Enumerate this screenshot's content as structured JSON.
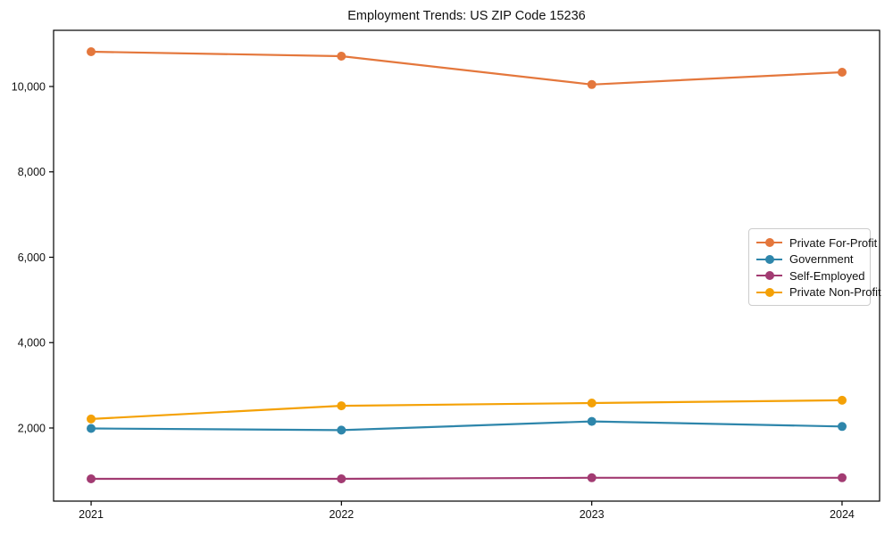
{
  "chart_data": {
    "type": "line",
    "title": "Employment Trends: US ZIP Code 15236",
    "xlabel": "",
    "ylabel": "",
    "categories": [
      "2021",
      "2022",
      "2023",
      "2024"
    ],
    "series": [
      {
        "name": "Private For-Profit",
        "color": "#E4773C",
        "values": [
          10815,
          10710,
          10045,
          10335
        ]
      },
      {
        "name": "Government",
        "color": "#2E86AB",
        "values": [
          1990,
          1950,
          2155,
          2035
        ]
      },
      {
        "name": "Self-Employed",
        "color": "#A23B72",
        "values": [
          810,
          810,
          835,
          835
        ]
      },
      {
        "name": "Private Non-Profit",
        "color": "#F4A106",
        "values": [
          2210,
          2520,
          2585,
          2650
        ]
      }
    ],
    "yticks": [
      {
        "value": 2000,
        "label": "2,000"
      },
      {
        "value": 4000,
        "label": "4,000"
      },
      {
        "value": 6000,
        "label": "6,000"
      },
      {
        "value": 8000,
        "label": "8,000"
      },
      {
        "value": 10000,
        "label": "10,000"
      }
    ],
    "ylim": [
      287,
      11316
    ],
    "grid": false,
    "marker": "circle",
    "legend_position": "center-right",
    "axis_color": "#000000",
    "background_color": "#ffffff"
  }
}
